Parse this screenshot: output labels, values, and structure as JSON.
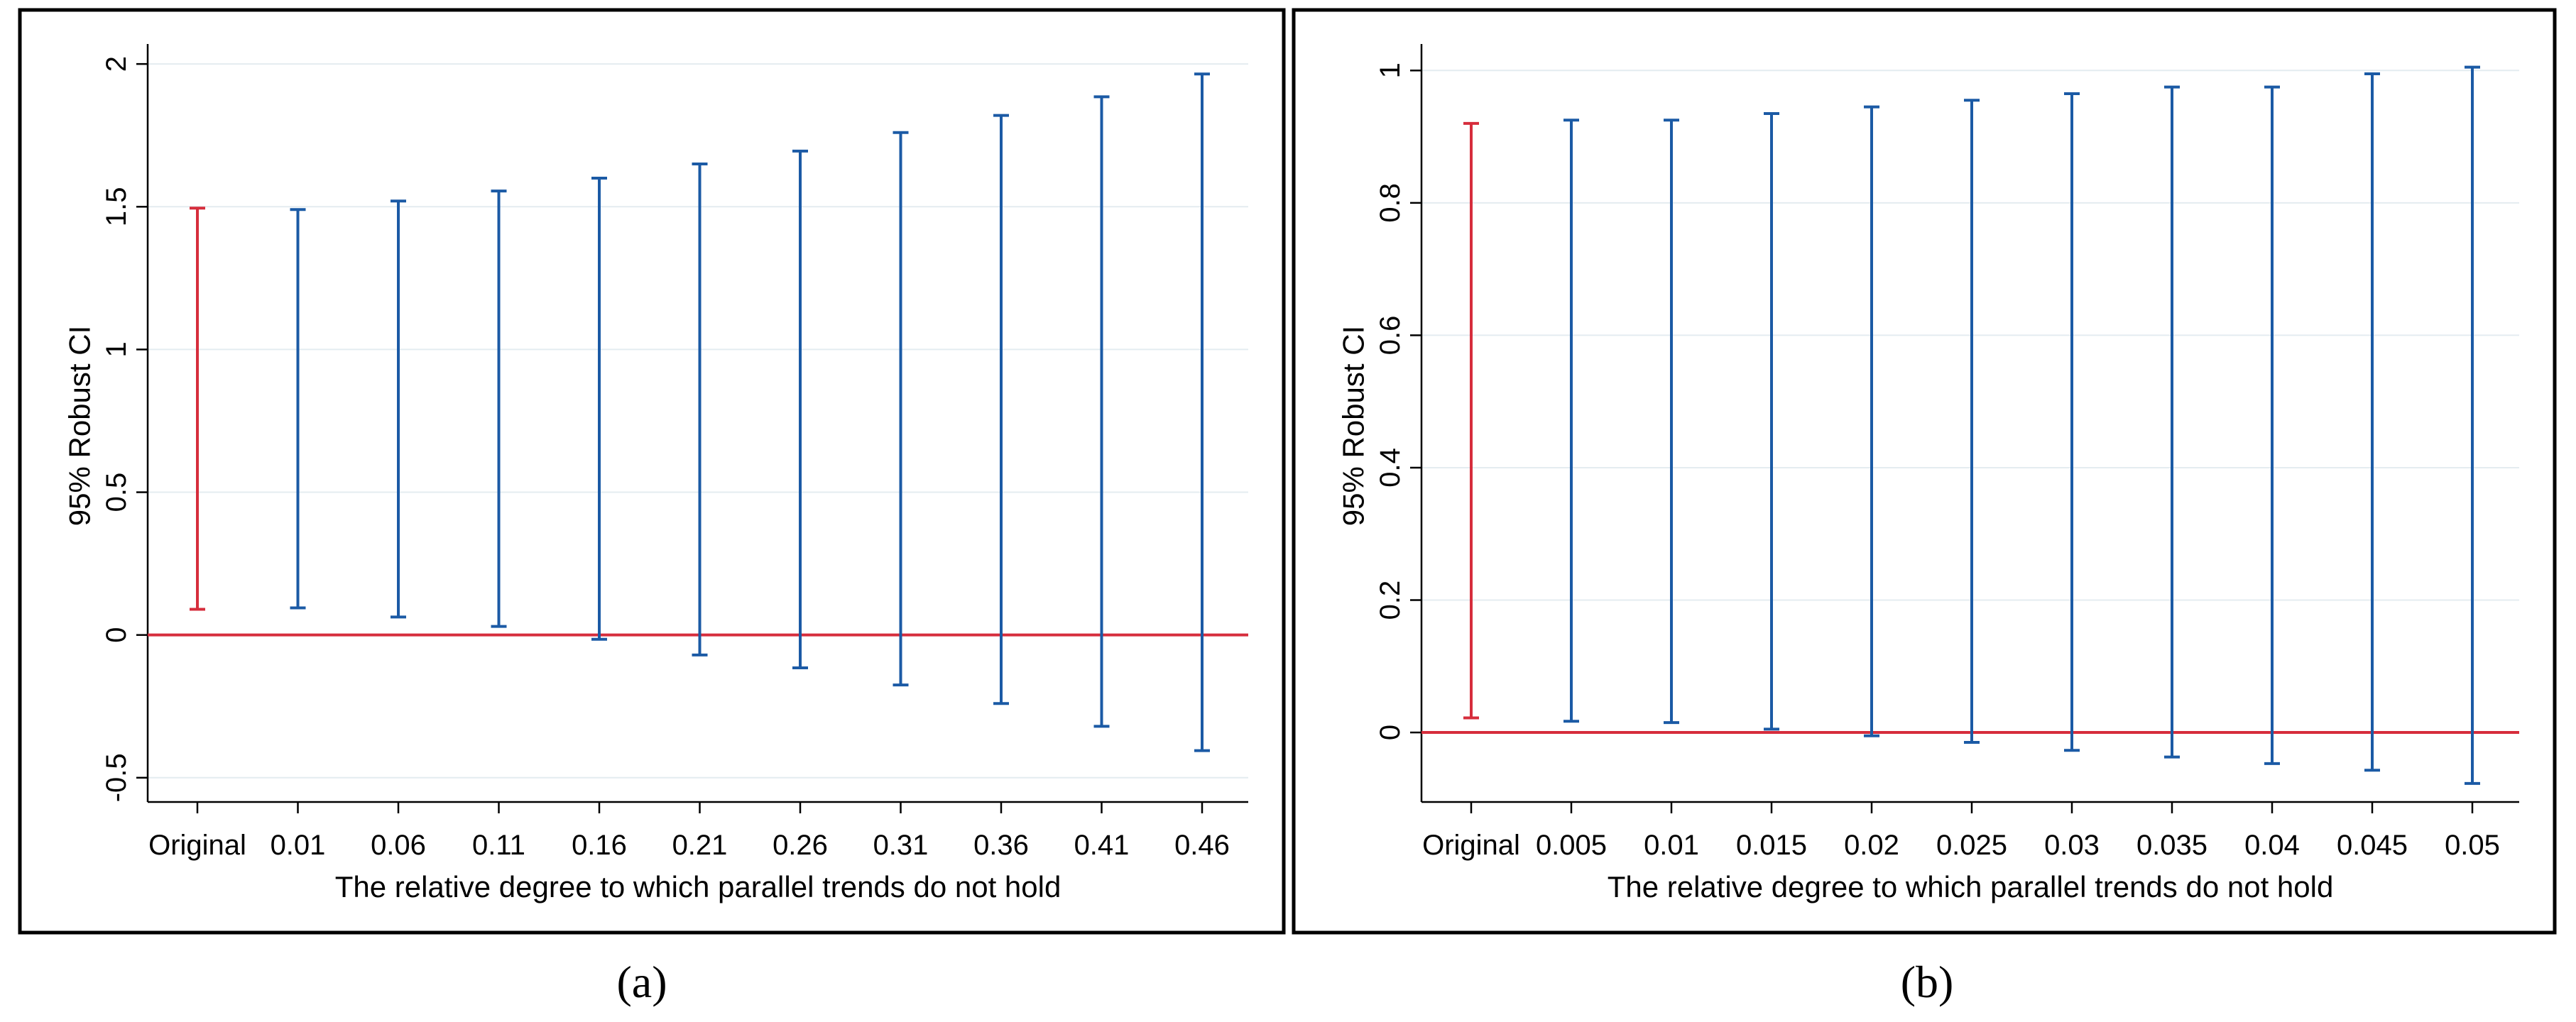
{
  "colors": {
    "original": "#d62d3c",
    "robust": "#1b5aa5",
    "zero_line": "#d62d3c",
    "grid": "#e4ecf0",
    "frame": "#000000"
  },
  "chart_data": [
    {
      "type": "range_plot",
      "caption": "(a)",
      "xlabel": "The relative degree to which parallel trends do not hold",
      "ylabel": "95% Robust CI",
      "categories": [
        "Original",
        "0.01",
        "0.06",
        "0.11",
        "0.16",
        "0.21",
        "0.26",
        "0.31",
        "0.36",
        "0.41",
        "0.46"
      ],
      "lower": [
        0.09,
        0.095,
        0.063,
        0.03,
        -0.015,
        -0.07,
        -0.115,
        -0.175,
        -0.24,
        -0.32,
        -0.405
      ],
      "upper": [
        1.495,
        1.49,
        1.52,
        1.555,
        1.6,
        1.65,
        1.695,
        1.76,
        1.82,
        1.885,
        1.965
      ],
      "ylim": [
        -0.585,
        2.07
      ],
      "yticks": [
        -0.5,
        0,
        0.5,
        1,
        1.5,
        2
      ],
      "ytick_labels": [
        "-0.5",
        "0",
        "0.5",
        "1",
        "1.5",
        "2"
      ],
      "reference_line": 0,
      "grid": true
    },
    {
      "type": "range_plot",
      "caption": "(b)",
      "xlabel": "The relative degree to which parallel trends do not hold",
      "ylabel": "95% Robust CI",
      "categories": [
        "Original",
        "0.005",
        "0.01",
        "0.015",
        "0.02",
        "0.025",
        "0.03",
        "0.035",
        "0.04",
        "0.045",
        "0.05"
      ],
      "lower": [
        0.022,
        0.017,
        0.015,
        0.005,
        -0.005,
        -0.015,
        -0.027,
        -0.037,
        -0.047,
        -0.057,
        -0.077
      ],
      "upper": [
        0.92,
        0.925,
        0.925,
        0.935,
        0.945,
        0.955,
        0.965,
        0.975,
        0.975,
        0.995,
        1.005
      ],
      "ylim": [
        -0.105,
        1.04
      ],
      "yticks": [
        0,
        0.2,
        0.4,
        0.6,
        0.8,
        1
      ],
      "ytick_labels": [
        "0",
        "0.2",
        "0.4",
        "0.6",
        "0.8",
        "1"
      ],
      "reference_line": 0,
      "grid": true
    }
  ]
}
